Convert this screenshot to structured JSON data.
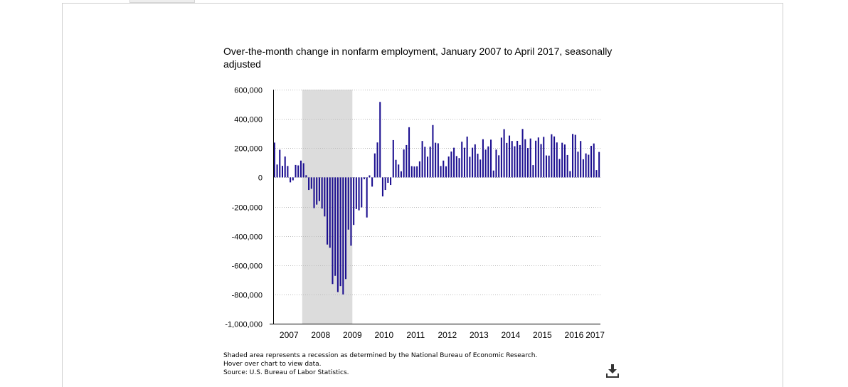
{
  "chart": {
    "title": "Over-the-month change in nonfarm employment, January 2007 to April 2017, seasonally adjusted",
    "notes": [
      "Shaded area represents a recession as determined by the National Bureau of Economic Research.",
      "Hover over chart to view data.",
      "Source: U.S. Bureau of Labor Statistics."
    ]
  },
  "download": {
    "icon": "download-icon"
  },
  "chart_data": {
    "type": "bar",
    "title": "Over-the-month change in nonfarm employment, January 2007 to April 2017, seasonally adjusted",
    "xlabel": "",
    "ylabel": "",
    "ylim": [
      -1000000,
      600000
    ],
    "y_ticks": [
      600000,
      400000,
      200000,
      0,
      -200000,
      -400000,
      -600000,
      -800000,
      -1000000
    ],
    "y_tick_labels": [
      "600,000",
      "400,000",
      "200,000",
      "0",
      "-200,000",
      "-400,000",
      "-600,000",
      "-800,000",
      "-1,000,000"
    ],
    "x_tick_labels": [
      "2007",
      "2008",
      "2009",
      "2010",
      "2011",
      "2012",
      "2013",
      "2014",
      "2015",
      "2016",
      "2017"
    ],
    "start": "2007-01",
    "end": "2017-04",
    "recession": {
      "start": "2007-12",
      "end": "2009-06"
    },
    "bar_color": "#1a0d8f",
    "recession_color": "#dcdcdc",
    "grid": true,
    "series": [
      {
        "values": [
          238000,
          88000,
          189000,
          79000,
          143000,
          78000,
          -34000,
          -20000,
          85000,
          82000,
          115000,
          97000,
          15000,
          -86000,
          -78000,
          -210000,
          -186000,
          -162000,
          -213000,
          -267000,
          -459000,
          -481000,
          -729000,
          -673000,
          -784000,
          -743000,
          -800000,
          -695000,
          -357000,
          -467000,
          -325000,
          -216000,
          -225000,
          -205000,
          -12000,
          -274000,
          14000,
          -63000,
          164000,
          239000,
          516000,
          -130000,
          -86000,
          -37000,
          -52000,
          255000,
          120000,
          88000,
          42000,
          191000,
          221000,
          343000,
          77000,
          75000,
          76000,
          110000,
          249000,
          209000,
          142000,
          210000,
          358000,
          237000,
          233000,
          78000,
          115000,
          76000,
          143000,
          177000,
          203000,
          146000,
          132000,
          244000,
          203000,
          279000,
          141000,
          203000,
          226000,
          162000,
          122000,
          261000,
          190000,
          212000,
          258000,
          47000,
          190000,
          151000,
          272000,
          330000,
          236000,
          286000,
          249000,
          213000,
          250000,
          221000,
          331000,
          261000,
          201000,
          266000,
          84000,
          251000,
          273000,
          228000,
          277000,
          150000,
          149000,
          295000,
          280000,
          239000,
          126000,
          237000,
          225000,
          153000,
          43000,
          297000,
          291000,
          176000,
          249000,
          124000,
          164000,
          155000,
          216000,
          232000,
          50000,
          174000
        ]
      }
    ]
  }
}
